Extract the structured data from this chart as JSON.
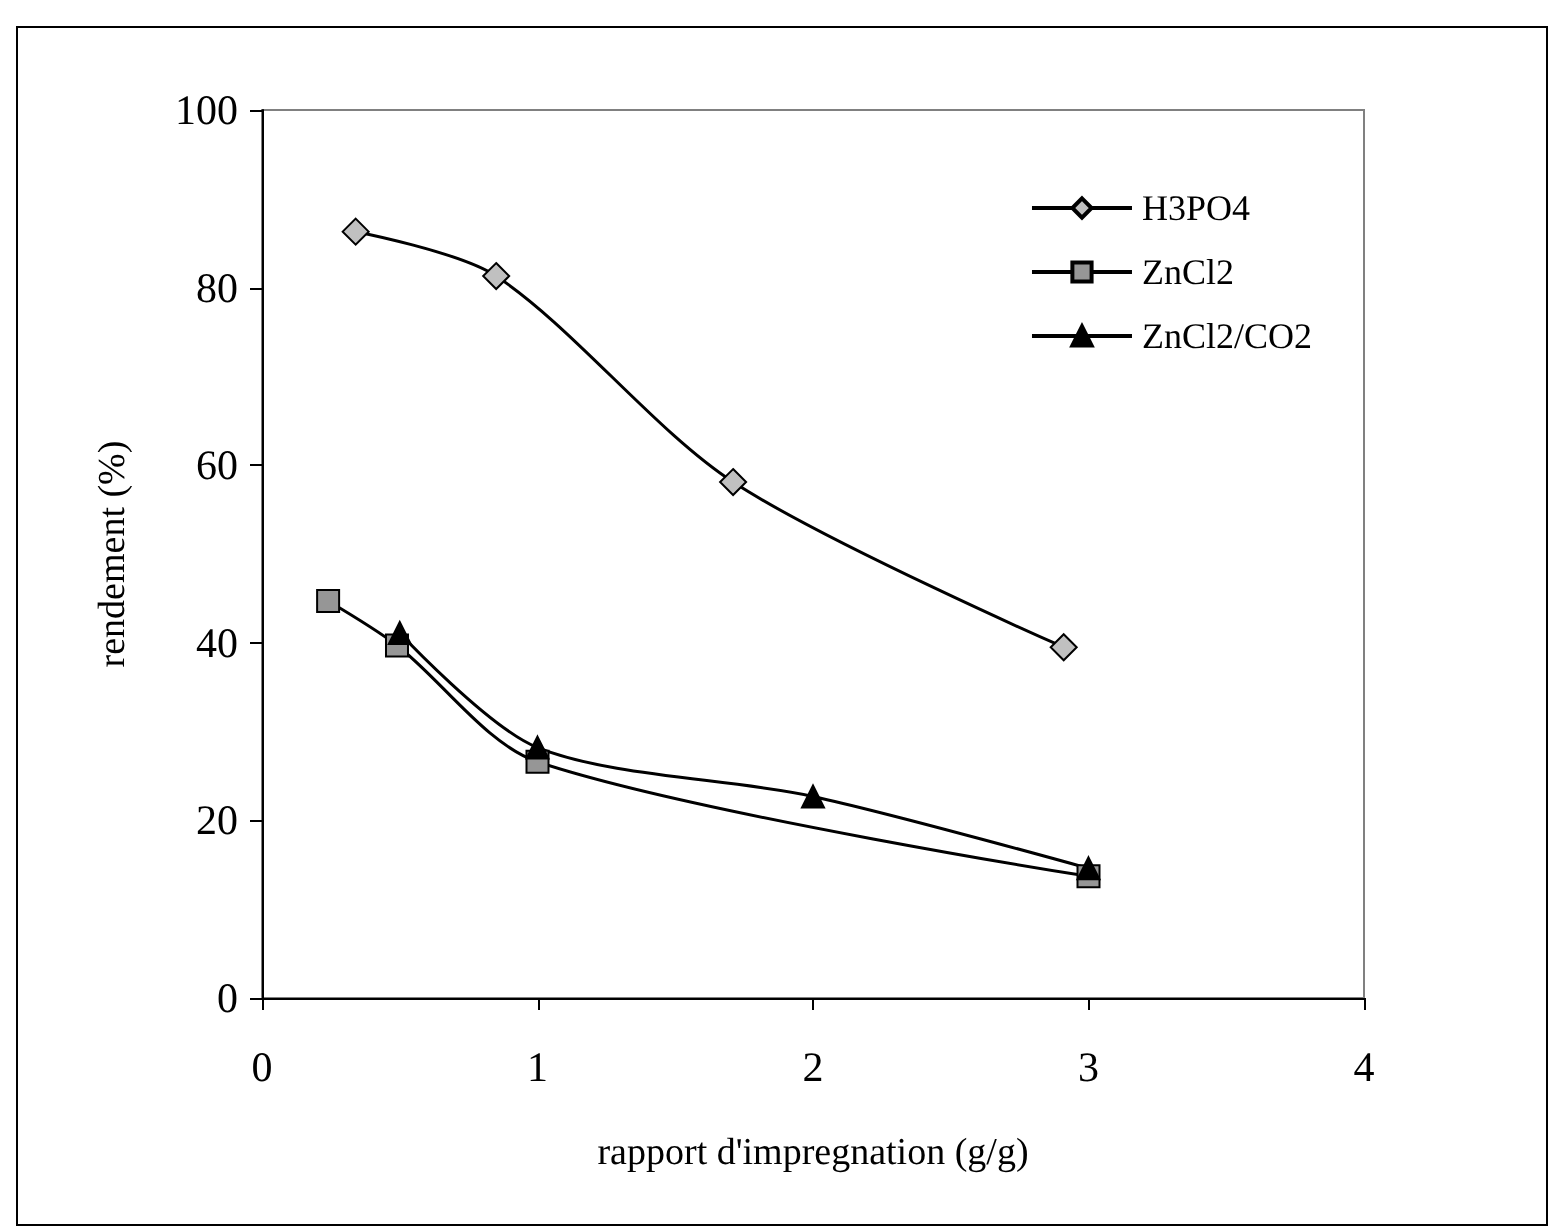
{
  "chart_data": {
    "type": "line",
    "xlabel": "rapport d'impregnation (g/g)",
    "ylabel": "rendement (%)",
    "xlim": [
      0,
      4
    ],
    "xticks": [
      0,
      1,
      2,
      3,
      4
    ],
    "ylim": [
      0,
      100
    ],
    "yticks": [
      0,
      20,
      40,
      60,
      80,
      100
    ],
    "grid": false,
    "legend": "top right",
    "line_style": "solid",
    "series": [
      {
        "name": "H3PO4",
        "color": "#c0c0c0",
        "marker": "diamond",
        "x": [
          0.34,
          0.85,
          1.71,
          2.91
        ],
        "values": [
          86.3,
          81.3,
          58.1,
          39.5
        ]
      },
      {
        "name": "ZnCl2",
        "color": "#969696",
        "marker": "square",
        "x": [
          0.24,
          0.49,
          1.0,
          3.0
        ],
        "values": [
          44.7,
          39.7,
          26.6,
          13.7
        ]
      },
      {
        "name": "ZnCl2/CO2",
        "color": "#000000",
        "marker": "triangle",
        "x": [
          0.5,
          1.0,
          2.0,
          3.0
        ],
        "values": [
          41.1,
          28.2,
          22.7,
          14.6
        ]
      }
    ]
  }
}
